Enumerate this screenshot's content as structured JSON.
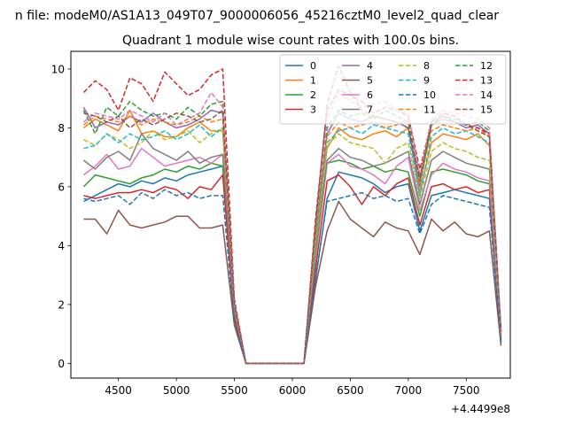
{
  "chart_data": {
    "type": "line",
    "suptitle": "n file: modeM0/AS1A13_049T07_9000006056_45216cztM0_level2_quad_clear",
    "title": "Quadrant 1 module wise count rates with 100.0s bins.",
    "xlabel": "",
    "ylabel": "",
    "x_offset_label": "+4.4499e8",
    "xlim": [
      4090,
      7880
    ],
    "ylim": [
      -0.5,
      10.6
    ],
    "x_ticks": [
      4500,
      5000,
      5500,
      6000,
      6500,
      7000,
      7500
    ],
    "y_ticks": [
      0,
      2,
      4,
      6,
      8,
      10
    ],
    "legend_position": "top-right",
    "x": [
      4200,
      4300,
      4400,
      4500,
      4600,
      4700,
      4800,
      4900,
      5000,
      5100,
      5200,
      5300,
      5400,
      5500,
      5600,
      5700,
      5800,
      5900,
      6000,
      6100,
      6200,
      6300,
      6400,
      6500,
      6600,
      6700,
      6800,
      6900,
      7000,
      7100,
      7200,
      7300,
      7400,
      7500,
      7600,
      7700,
      7800
    ],
    "series": [
      {
        "name": "0",
        "color": "#1f77b4",
        "dash": "solid",
        "values": [
          5.5,
          5.7,
          5.9,
          6.1,
          6.0,
          6.2,
          6.1,
          6.3,
          6.2,
          6.4,
          6.5,
          6.6,
          6.7,
          1.6,
          0,
          0,
          0,
          0,
          0,
          0,
          2.8,
          5.6,
          6.5,
          6.4,
          6.3,
          6.1,
          5.8,
          6.0,
          6.1,
          4.5,
          5.7,
          5.8,
          5.9,
          5.8,
          5.7,
          5.6,
          0.7
        ]
      },
      {
        "name": "1",
        "color": "#ff7f0e",
        "dash": "solid",
        "values": [
          8.0,
          8.3,
          8.1,
          7.9,
          8.6,
          7.8,
          7.9,
          7.7,
          7.7,
          8.0,
          8.2,
          7.9,
          7.9,
          1.9,
          0,
          0,
          0,
          0,
          0,
          0,
          4.2,
          7.3,
          8.0,
          7.7,
          7.6,
          7.8,
          7.9,
          7.7,
          8.0,
          5.8,
          7.5,
          7.8,
          7.7,
          7.6,
          7.8,
          7.4,
          1.0
        ]
      },
      {
        "name": "2",
        "color": "#2ca02c",
        "dash": "solid",
        "values": [
          6.0,
          6.4,
          6.3,
          6.2,
          6.1,
          6.3,
          6.4,
          6.6,
          6.5,
          6.7,
          6.6,
          6.8,
          6.7,
          1.7,
          0,
          0,
          0,
          0,
          0,
          0,
          3.6,
          6.8,
          6.9,
          6.8,
          6.6,
          6.7,
          6.5,
          6.6,
          6.5,
          5.0,
          6.5,
          6.6,
          6.5,
          6.4,
          6.2,
          6.1,
          0.8
        ]
      },
      {
        "name": "3",
        "color": "#d62728",
        "dash": "solid",
        "values": [
          5.7,
          5.6,
          5.7,
          5.8,
          5.8,
          5.9,
          5.8,
          6.0,
          5.9,
          5.6,
          6.0,
          5.9,
          6.4,
          1.5,
          0,
          0,
          0,
          0,
          0,
          0,
          3.2,
          6.2,
          6.4,
          6.0,
          5.4,
          6.0,
          5.7,
          6.1,
          6.3,
          4.7,
          6.0,
          6.1,
          5.9,
          6.0,
          5.8,
          5.9,
          0.8
        ]
      },
      {
        "name": "4",
        "color": "#9467bd",
        "dash": "solid",
        "values": [
          8.7,
          8.0,
          8.2,
          8.1,
          8.4,
          8.2,
          8.5,
          8.2,
          8.0,
          8.1,
          8.3,
          8.6,
          8.5,
          2.0,
          0,
          0,
          0,
          0,
          0,
          0,
          4.5,
          7.8,
          8.5,
          8.3,
          8.2,
          8.4,
          8.3,
          8.2,
          8.0,
          6.0,
          8.1,
          8.3,
          8.2,
          8.0,
          8.1,
          7.8,
          1.1
        ]
      },
      {
        "name": "5",
        "color": "#8c564b",
        "dash": "solid",
        "values": [
          4.9,
          4.9,
          4.4,
          5.2,
          4.7,
          4.6,
          4.7,
          4.8,
          5.0,
          5.0,
          4.6,
          4.6,
          4.7,
          1.3,
          0,
          0,
          0,
          0,
          0,
          0,
          2.6,
          4.5,
          5.5,
          4.9,
          4.6,
          4.3,
          4.8,
          4.6,
          4.5,
          3.7,
          4.9,
          4.5,
          4.8,
          4.4,
          4.3,
          4.5,
          0.6
        ]
      },
      {
        "name": "6",
        "color": "#e377c2",
        "dash": "solid",
        "values": [
          6.4,
          6.7,
          7.1,
          6.6,
          6.7,
          7.3,
          7.0,
          6.7,
          6.8,
          6.9,
          7.0,
          6.8,
          7.1,
          1.8,
          0,
          0,
          0,
          0,
          0,
          0,
          3.7,
          6.8,
          7.1,
          6.7,
          6.6,
          6.4,
          6.1,
          6.7,
          7.0,
          5.2,
          6.4,
          6.8,
          6.6,
          6.5,
          6.3,
          6.2,
          0.9
        ]
      },
      {
        "name": "7",
        "color": "#7f7f7f",
        "dash": "solid",
        "values": [
          6.9,
          6.6,
          7.0,
          7.2,
          6.9,
          7.8,
          7.3,
          7.1,
          6.9,
          7.2,
          6.8,
          7.0,
          7.1,
          1.8,
          0,
          0,
          0,
          0,
          0,
          0,
          3.8,
          6.9,
          7.3,
          7.0,
          6.9,
          6.7,
          6.8,
          7.0,
          7.2,
          5.4,
          6.9,
          7.2,
          7.0,
          6.8,
          6.7,
          6.6,
          0.9
        ]
      },
      {
        "name": "8",
        "color": "#bcbd22",
        "dash": "dashed",
        "values": [
          7.6,
          7.4,
          7.8,
          7.6,
          7.3,
          7.5,
          7.9,
          7.6,
          7.7,
          7.9,
          7.5,
          7.8,
          8.0,
          1.9,
          0,
          0,
          0,
          0,
          0,
          0,
          4.0,
          7.4,
          7.8,
          7.5,
          7.4,
          7.3,
          6.8,
          7.3,
          7.5,
          5.6,
          7.2,
          7.5,
          7.3,
          7.2,
          7.0,
          6.9,
          1.0
        ]
      },
      {
        "name": "9",
        "color": "#17becf",
        "dash": "dashed",
        "values": [
          7.3,
          7.4,
          7.8,
          7.5,
          7.8,
          7.6,
          7.7,
          7.9,
          7.6,
          7.8,
          8.1,
          7.7,
          8.0,
          1.9,
          0,
          0,
          0,
          0,
          0,
          0,
          4.1,
          7.5,
          7.9,
          8.0,
          7.8,
          8.1,
          8.0,
          7.9,
          7.8,
          5.7,
          7.7,
          8.0,
          7.8,
          7.9,
          7.7,
          7.5,
          1.0
        ]
      },
      {
        "name": "10",
        "color": "#1f77b4",
        "dash": "dashed",
        "values": [
          5.6,
          5.5,
          5.6,
          5.7,
          5.4,
          5.8,
          5.6,
          5.9,
          5.7,
          5.8,
          5.6,
          5.7,
          5.7,
          1.4,
          0,
          0,
          0,
          0,
          0,
          0,
          2.9,
          5.5,
          5.6,
          5.7,
          5.8,
          5.6,
          5.7,
          5.5,
          5.6,
          4.4,
          5.4,
          5.7,
          5.6,
          5.5,
          5.4,
          5.3,
          0.7
        ]
      },
      {
        "name": "11",
        "color": "#ff7f0e",
        "dash": "dashed",
        "values": [
          8.1,
          8.4,
          8.3,
          8.2,
          8.4,
          8.1,
          8.3,
          8.2,
          8.1,
          8.2,
          8.4,
          8.2,
          8.3,
          2.0,
          0,
          0,
          0,
          0,
          0,
          0,
          4.3,
          7.7,
          8.2,
          8.0,
          8.1,
          8.2,
          8.0,
          8.1,
          8.3,
          6.1,
          7.9,
          8.1,
          8.0,
          7.9,
          8.0,
          7.7,
          1.0
        ]
      },
      {
        "name": "12",
        "color": "#2ca02c",
        "dash": "dashed",
        "values": [
          8.6,
          7.8,
          8.7,
          8.4,
          8.9,
          8.6,
          8.4,
          8.5,
          8.3,
          8.7,
          8.4,
          8.8,
          8.9,
          2.1,
          0,
          0,
          0,
          0,
          0,
          0,
          4.4,
          8.0,
          8.6,
          8.4,
          8.5,
          8.3,
          8.6,
          8.4,
          8.2,
          6.2,
          8.1,
          8.4,
          8.3,
          8.1,
          8.2,
          7.9,
          1.1
        ]
      },
      {
        "name": "13",
        "color": "#d62728",
        "dash": "dashed",
        "values": [
          9.2,
          9.6,
          9.3,
          8.6,
          9.7,
          9.5,
          8.9,
          9.9,
          9.5,
          9.1,
          9.3,
          9.8,
          10.0,
          2.2,
          0,
          0,
          0,
          0,
          0,
          0,
          4.9,
          8.6,
          9.3,
          9.1,
          8.9,
          8.5,
          8.7,
          8.6,
          8.4,
          6.6,
          8.2,
          8.5,
          8.4,
          8.1,
          8.0,
          7.8,
          1.1
        ]
      },
      {
        "name": "14",
        "color": "#e377c2",
        "dash": "dashed",
        "values": [
          8.2,
          8.5,
          8.4,
          8.3,
          8.6,
          8.4,
          8.2,
          8.5,
          8.1,
          8.3,
          8.5,
          9.2,
          8.7,
          2.1,
          0,
          0,
          0,
          0,
          0,
          0,
          4.6,
          8.3,
          9.2,
          8.9,
          8.7,
          8.8,
          8.9,
          8.6,
          8.5,
          6.4,
          8.3,
          8.6,
          8.5,
          8.4,
          8.3,
          8.0,
          1.1
        ]
      },
      {
        "name": "15",
        "color": "#8c564b",
        "dash": "dashed",
        "values": [
          8.5,
          8.4,
          8.2,
          8.4,
          8.0,
          8.3,
          8.1,
          8.3,
          8.5,
          8.4,
          8.2,
          8.3,
          8.6,
          2.0,
          0,
          0,
          0,
          0,
          0,
          0,
          4.7,
          8.8,
          10.1,
          9.2,
          8.6,
          8.4,
          8.3,
          8.2,
          8.0,
          6.3,
          8.2,
          8.4,
          8.2,
          8.1,
          7.9,
          7.7,
          1.1
        ]
      }
    ]
  }
}
